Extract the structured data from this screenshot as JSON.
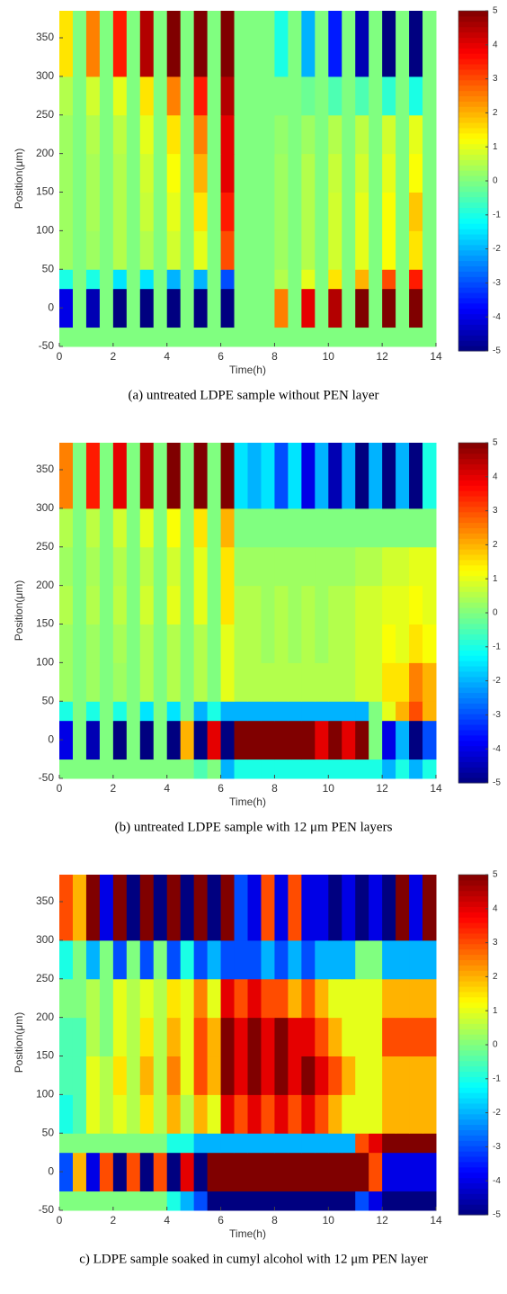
{
  "chart_data": [
    {
      "type": "heatmap",
      "colormap": "jet",
      "xlabel": "Time(h)",
      "ylabel": "Position(μm)",
      "caption": "(a)    untreated LDPE sample without PEN layer",
      "xlim": [
        0,
        14
      ],
      "xticks": [
        0,
        2,
        4,
        6,
        8,
        10,
        12,
        14
      ],
      "ylim": [
        -50,
        385
      ],
      "yticks": [
        -50,
        0,
        50,
        100,
        150,
        200,
        250,
        300,
        350
      ],
      "clim": [
        -5,
        5
      ],
      "cticks": [
        -5,
        -4,
        -3,
        -2,
        -1,
        0,
        1,
        2,
        3,
        4,
        5
      ],
      "x_edges": [
        0,
        0.5,
        1,
        1.5,
        2,
        2.5,
        3,
        3.5,
        4,
        4.5,
        5,
        5.5,
        6,
        6.5,
        7,
        7.5,
        8,
        8.5,
        9,
        9.5,
        10,
        10.5,
        11,
        11.5,
        12,
        12.5,
        13,
        13.5,
        14
      ],
      "y_edges": [
        -50,
        -25,
        25,
        50,
        100,
        150,
        200,
        250,
        300,
        385
      ],
      "z": [
        [
          0,
          0,
          0,
          0,
          0,
          0,
          0,
          0,
          0,
          0,
          0,
          0,
          0,
          0,
          0,
          0,
          0,
          0,
          0,
          0,
          0,
          0,
          0,
          0,
          0,
          0,
          0,
          0
        ],
        [
          -4,
          0,
          -4.5,
          0,
          -5,
          0,
          -5,
          0,
          -5,
          0,
          -5,
          0,
          -5,
          0,
          0,
          0,
          2.5,
          0,
          4,
          0,
          4.5,
          0,
          5,
          0,
          5,
          0,
          5,
          0
        ],
        [
          -1,
          0,
          -1,
          0,
          -1.5,
          0,
          -1.5,
          0,
          -2,
          0,
          -2,
          0,
          -3,
          0,
          0,
          0,
          0.5,
          0,
          1,
          0,
          1.5,
          0,
          2,
          0,
          3,
          0,
          3.5,
          0
        ],
        [
          0.3,
          0,
          0.3,
          0,
          0.5,
          0,
          0.5,
          0,
          0.8,
          0,
          1,
          0,
          3,
          0,
          0,
          0,
          0.3,
          0,
          0.5,
          0,
          0.8,
          0,
          1,
          0,
          1.2,
          0,
          1.5,
          0
        ],
        [
          0.3,
          0,
          0.4,
          0,
          0.5,
          0,
          0.7,
          0,
          1,
          0,
          1.5,
          0,
          3.5,
          0,
          0,
          0,
          0.3,
          0,
          0.5,
          0,
          0.8,
          0,
          1,
          0,
          1.2,
          0,
          1.8,
          0
        ],
        [
          0.3,
          0,
          0.4,
          0,
          0.5,
          0,
          0.8,
          0,
          1.2,
          0,
          2,
          0,
          4,
          0,
          0,
          0,
          0.3,
          0,
          0.5,
          0,
          0.7,
          0,
          0.8,
          0,
          1,
          0,
          1.2,
          0
        ],
        [
          0.3,
          0,
          0.5,
          0,
          0.6,
          0,
          1,
          0,
          1.5,
          0,
          2.5,
          0,
          4,
          0,
          0,
          0,
          0.2,
          0,
          0.3,
          0,
          0.5,
          0,
          0.6,
          0,
          0.8,
          0,
          1,
          0
        ],
        [
          0.5,
          0,
          0.8,
          0,
          1,
          0,
          1.5,
          0,
          2.5,
          0,
          3.5,
          0,
          4.5,
          0,
          0,
          0,
          0,
          0,
          -0.2,
          0,
          -0.5,
          0,
          -0.5,
          0,
          -0.8,
          0,
          -1,
          0
        ],
        [
          1.5,
          0,
          2.5,
          0,
          3.5,
          0,
          4.5,
          0,
          5,
          0,
          5,
          0,
          5,
          0,
          0,
          0,
          -1,
          0,
          -2,
          0,
          -3.5,
          0,
          -4.5,
          0,
          -5,
          0,
          -5,
          0
        ]
      ]
    },
    {
      "type": "heatmap",
      "colormap": "jet",
      "xlabel": "Time(h)",
      "ylabel": "Position(μm)",
      "caption": "(b)    untreated LDPE sample with 12 μm PEN layers",
      "xlim": [
        0,
        14
      ],
      "xticks": [
        0,
        2,
        4,
        6,
        8,
        10,
        12,
        14
      ],
      "ylim": [
        -50,
        385
      ],
      "yticks": [
        -50,
        0,
        50,
        100,
        150,
        200,
        250,
        300,
        350
      ],
      "clim": [
        -5,
        5
      ],
      "cticks": [
        -5,
        -4,
        -3,
        -2,
        -1,
        0,
        1,
        2,
        3,
        4,
        5
      ],
      "x_edges": [
        0,
        0.5,
        1,
        1.5,
        2,
        2.5,
        3,
        3.5,
        4,
        4.5,
        5,
        5.5,
        6,
        6.5,
        7,
        7.5,
        8,
        8.5,
        9,
        9.5,
        10,
        10.5,
        11,
        11.5,
        12,
        12.5,
        13,
        13.5,
        14
      ],
      "y_edges": [
        -50,
        -25,
        25,
        50,
        100,
        150,
        200,
        250,
        300,
        385
      ],
      "z": [
        [
          0,
          0,
          0,
          0,
          0,
          0,
          0,
          0,
          0,
          0,
          -0.5,
          0,
          -2,
          -1,
          -1,
          -1,
          -1,
          -1,
          -1,
          -1,
          -1,
          -1,
          -1,
          -1,
          -2,
          -1,
          -2,
          -1
        ],
        [
          -4,
          0,
          -4.5,
          0,
          -5,
          0,
          -5,
          0,
          -5,
          2,
          -5,
          4,
          -5,
          5,
          5,
          5,
          5,
          5,
          5,
          4,
          5,
          4,
          5,
          0,
          -4,
          -2,
          -5,
          -3
        ],
        [
          -1,
          0,
          -1,
          0,
          -1,
          0,
          -1.5,
          0,
          -1.5,
          0,
          -2,
          -1,
          -2,
          -2,
          -2,
          -2,
          -2,
          -2,
          -2,
          -2,
          -2,
          -2,
          -2,
          0,
          1,
          2,
          3,
          2
        ],
        [
          0.3,
          0,
          0.3,
          0,
          0.3,
          0,
          0.5,
          0,
          0.5,
          0,
          0.5,
          0,
          1,
          0.5,
          0.5,
          0.5,
          0.5,
          0.5,
          0.5,
          0.5,
          0.5,
          0.5,
          0.8,
          0.8,
          1.5,
          1.5,
          2.5,
          2
        ],
        [
          0.3,
          0,
          0.3,
          0,
          0.4,
          0,
          0.5,
          0,
          0.5,
          0,
          0.5,
          0,
          1,
          0.5,
          0.5,
          0.3,
          0.5,
          0.3,
          0.5,
          0.3,
          0.5,
          0.5,
          0.8,
          0.8,
          1.2,
          1,
          1.5,
          1.2
        ],
        [
          0.5,
          0,
          0.5,
          0,
          0.6,
          0,
          0.8,
          0,
          1,
          0,
          1,
          0,
          1.5,
          0.5,
          0.5,
          0.3,
          0.5,
          0.3,
          0.5,
          0.3,
          0.5,
          0.5,
          0.8,
          0.8,
          1,
          1,
          1.2,
          1
        ],
        [
          0.3,
          0,
          0.4,
          0,
          0.5,
          0,
          0.6,
          0,
          0.8,
          0,
          1,
          0,
          1.5,
          0.3,
          0.3,
          0.3,
          0.3,
          0.3,
          0.3,
          0.3,
          0.3,
          0.3,
          0.5,
          0.5,
          0.8,
          0.8,
          1,
          1
        ],
        [
          0.5,
          0,
          0.6,
          0,
          0.8,
          0,
          1,
          0,
          1.2,
          0,
          1.5,
          0,
          2,
          0,
          0,
          0,
          0,
          0,
          0,
          0,
          0,
          0,
          0,
          0,
          0,
          0,
          0,
          0
        ],
        [
          2.5,
          0,
          3.5,
          0,
          4,
          0,
          4.5,
          0,
          5,
          0,
          5,
          0,
          5,
          -1.5,
          -2,
          -1.5,
          -3,
          -1.5,
          -4,
          -2,
          -4.5,
          -2,
          -5,
          -2,
          -5,
          -2,
          -5,
          -1
        ]
      ]
    },
    {
      "type": "heatmap",
      "colormap": "jet",
      "xlabel": "Time(h)",
      "ylabel": "Position(μm)",
      "caption": "c)    LDPE sample soaked in cumyl alcohol with 12 μm PEN layer",
      "xlim": [
        0,
        14
      ],
      "xticks": [
        0,
        2,
        4,
        6,
        8,
        10,
        12,
        14
      ],
      "ylim": [
        -50,
        385
      ],
      "yticks": [
        -50,
        0,
        50,
        100,
        150,
        200,
        250,
        300,
        350
      ],
      "clim": [
        -5,
        5
      ],
      "cticks": [
        -5,
        -4,
        -3,
        -2,
        -1,
        0,
        1,
        2,
        3,
        4,
        5
      ],
      "x_edges": [
        0,
        0.5,
        1,
        1.5,
        2,
        2.5,
        3,
        3.5,
        4,
        4.5,
        5,
        5.5,
        6,
        6.5,
        7,
        7.5,
        8,
        8.5,
        9,
        9.5,
        10,
        10.5,
        11,
        11.5,
        12,
        12.5,
        13,
        13.5,
        14
      ],
      "y_edges": [
        -50,
        -25,
        25,
        50,
        100,
        150,
        200,
        250,
        300,
        385
      ],
      "z": [
        [
          0,
          0,
          0,
          0,
          0,
          0,
          0,
          0,
          -1,
          -2,
          -3,
          -5,
          -5,
          -5,
          -5,
          -5,
          -5,
          -5,
          -5,
          -5,
          -5,
          -5,
          -3,
          -4,
          -5,
          -5,
          -5,
          -5
        ],
        [
          -3,
          2,
          -4,
          3,
          -5,
          3,
          -5,
          3,
          -5,
          4,
          -5,
          5,
          5,
          5,
          5,
          5,
          5,
          5,
          5,
          5,
          5,
          5,
          5,
          3,
          -4,
          -4,
          -4,
          -4
        ],
        [
          0,
          0,
          0,
          0,
          0,
          0,
          0,
          0,
          -1,
          -1,
          -2,
          -2,
          -2,
          -2,
          -2,
          -2,
          -2,
          -2,
          -2,
          -2,
          -2,
          -2,
          3,
          4,
          5,
          5,
          5,
          5
        ],
        [
          -1,
          -0.5,
          1,
          0.5,
          1,
          0.5,
          1.5,
          0.5,
          2,
          0.5,
          2,
          1,
          4,
          3,
          4,
          3,
          4,
          3,
          4,
          3,
          2,
          1,
          1,
          1,
          2,
          2,
          2,
          2
        ],
        [
          -0.5,
          -0.5,
          1,
          0.5,
          1.5,
          0.5,
          2,
          0.5,
          2.5,
          1,
          3,
          2,
          5,
          4,
          5,
          4,
          5,
          4,
          5,
          4,
          3,
          2,
          1,
          1,
          2,
          2,
          2,
          2
        ],
        [
          -0.5,
          -0.5,
          0.5,
          0,
          1,
          0.5,
          1.5,
          0.5,
          2,
          1,
          3,
          2,
          5,
          4,
          5,
          4,
          5,
          4,
          4,
          3,
          2,
          1,
          1,
          1,
          3,
          3,
          3,
          3
        ],
        [
          0,
          0,
          0.5,
          0,
          1,
          0.5,
          1,
          0.5,
          1.5,
          1,
          2.5,
          1,
          4,
          3,
          4,
          3,
          3,
          2,
          3,
          2,
          1,
          1,
          1,
          1,
          2,
          2,
          2,
          2
        ],
        [
          -1,
          0,
          -2,
          0,
          -3,
          0,
          -3,
          0,
          -3,
          -1,
          -3,
          -2,
          -3,
          -3,
          -3,
          -2,
          -3,
          -2,
          -3,
          -2,
          -2,
          -2,
          0,
          0,
          -2,
          -2,
          -2,
          -2
        ],
        [
          3,
          2,
          5,
          -4,
          5,
          -5,
          5,
          -5,
          5,
          -5,
          5,
          -5,
          5,
          -3,
          -4,
          3,
          -4,
          3,
          -4,
          -4,
          -5,
          -4,
          -5,
          -4,
          -5,
          5,
          -4,
          5
        ]
      ]
    }
  ]
}
